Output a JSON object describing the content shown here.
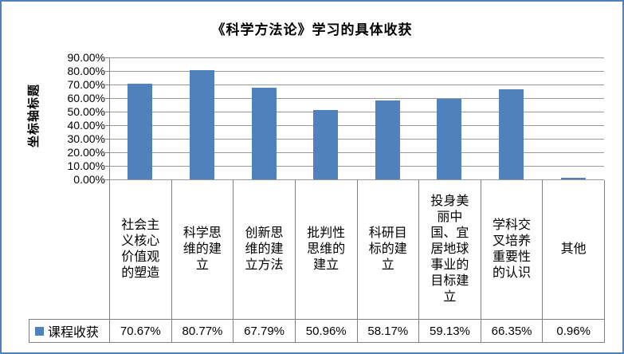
{
  "frame": {
    "border_color": "#4f81bd",
    "background": "#ffffff"
  },
  "chart_data": {
    "type": "bar",
    "title": "《科学方法论》学习的具体收获",
    "ylabel": "坐标轴标题",
    "xlabel": "",
    "categories": [
      "社会主义核心价值观的塑造",
      "科学思维的建立",
      "创新思维的建立方法",
      "批判性思维的建立",
      "科研目标的建立",
      "投身美丽中国、宜居地球事业的目标建立",
      "学科交叉培养重要性的认识",
      "其他"
    ],
    "series": [
      {
        "name": "课程收获",
        "values": [
          70.67,
          80.77,
          67.79,
          50.96,
          58.17,
          59.13,
          66.35,
          0.96
        ]
      }
    ],
    "value_labels": [
      "70.67%",
      "80.77%",
      "67.79%",
      "50.96%",
      "58.17%",
      "59.13%",
      "66.35%",
      "0.96%"
    ],
    "yticks": [
      "90.00%",
      "80.00%",
      "70.00%",
      "60.00%",
      "50.00%",
      "40.00%",
      "30.00%",
      "20.00%",
      "10.00%",
      "0.00%"
    ],
    "ylim": [
      0,
      90
    ],
    "grid": true,
    "bar_color": "#4f81bd",
    "gridline_color": "#9a9a9a",
    "axis_color": "#808080",
    "legend_position": "bottom-table"
  },
  "legend": {
    "marker": "square",
    "marker_color": "#4f81bd",
    "label": "课程收获"
  }
}
